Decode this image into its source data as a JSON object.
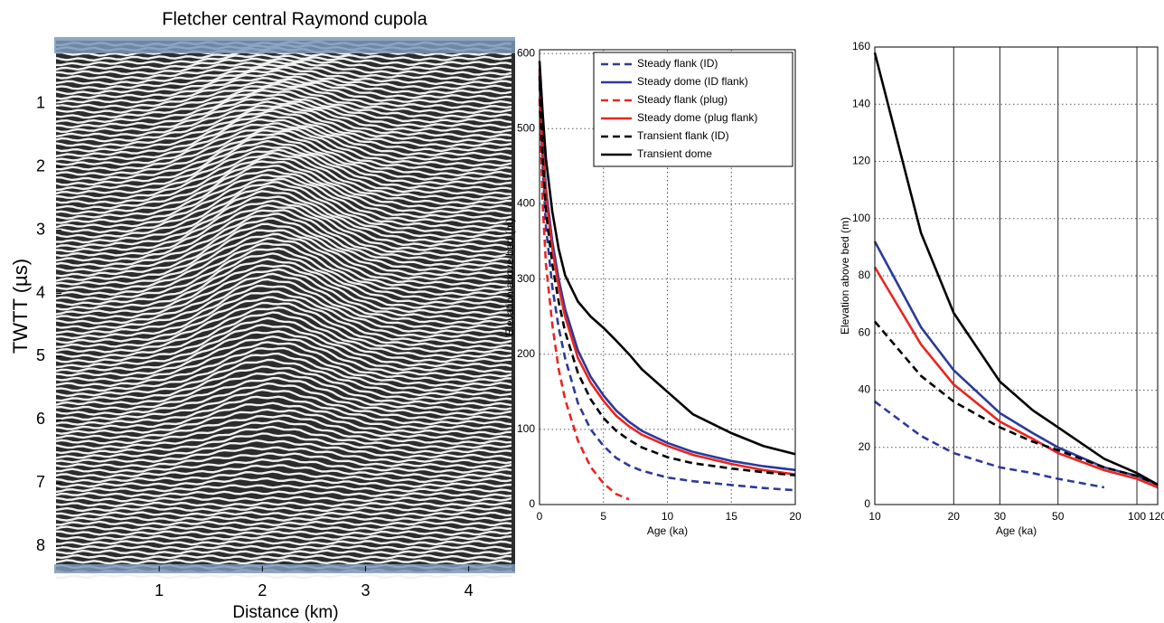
{
  "chart_data": [
    {
      "type": "image",
      "title": "Fletcher central Raymond cupola",
      "xlabel": "Distance (km)",
      "ylabel": "TWTT (µs)",
      "xlim": [
        0,
        4.45
      ],
      "xticks": [
        1,
        2,
        3,
        4
      ],
      "ylim": [
        0,
        8.4
      ],
      "yticks": [
        1,
        2,
        3,
        4,
        5,
        6,
        7,
        8
      ],
      "yinverted": true
    },
    {
      "type": "line",
      "xlabel": "Age (ka)",
      "ylabel": "Elevation above bed (m)",
      "x": [
        0,
        0.25,
        0.5,
        1,
        1.5,
        2,
        3,
        4,
        5,
        6,
        7,
        8,
        10,
        12,
        15,
        17.5,
        20
      ],
      "xlim": [
        0,
        20
      ],
      "xticks": [
        0,
        5,
        10,
        15,
        20
      ],
      "ylim": [
        0,
        605
      ],
      "yticks": [
        0,
        100,
        200,
        300,
        400,
        500,
        600
      ],
      "xgrid": "dotted",
      "ygrid": "dotted",
      "legend": "upper right",
      "series": [
        {
          "name": "Steady flank (ID)",
          "color": "#2b3a9a",
          "linestyle": "dashed",
          "values": [
            560,
            450,
            370,
            290,
            235,
            195,
            135,
            100,
            78,
            62,
            52,
            45,
            36,
            31,
            26,
            22,
            19
          ]
        },
        {
          "name": "Steady dome (ID flank)",
          "color": "#2b3a9a",
          "linestyle": "solid",
          "values": [
            580,
            480,
            420,
            350,
            300,
            260,
            205,
            170,
            145,
            125,
            110,
            98,
            82,
            70,
            58,
            51,
            46
          ]
        },
        {
          "name": "Steady flank (plug)",
          "color": "#e8251f",
          "linestyle": "dashed",
          "values": [
            540,
            400,
            320,
            240,
            180,
            140,
            85,
            50,
            28,
            14,
            7,
            null,
            null,
            null,
            null,
            null,
            null
          ]
        },
        {
          "name": "Steady dome (plug flank)",
          "color": "#e8251f",
          "linestyle": "solid",
          "values": [
            575,
            470,
            410,
            340,
            290,
            250,
            195,
            162,
            138,
            118,
            104,
            93,
            78,
            66,
            54,
            46,
            40
          ]
        },
        {
          "name": "Transient flank (ID)",
          "color": "#000000",
          "linestyle": "dashed",
          "values": [
            570,
            460,
            390,
            320,
            270,
            230,
            175,
            140,
            115,
            98,
            86,
            76,
            63,
            55,
            48,
            43,
            39
          ]
        },
        {
          "name": "Transient dome",
          "color": "#000000",
          "linestyle": "solid",
          "values": [
            590,
            520,
            460,
            390,
            340,
            305,
            270,
            250,
            235,
            218,
            200,
            180,
            150,
            120,
            95,
            78,
            67
          ]
        }
      ]
    },
    {
      "type": "line",
      "xlabel": "Age (ka)",
      "ylabel": "Elevation above bed (m)",
      "xscale": "log",
      "x": [
        10,
        15,
        20,
        30,
        40,
        50,
        75,
        100,
        120
      ],
      "xlim": [
        10,
        120
      ],
      "xticks": [
        10,
        20,
        30,
        50,
        100,
        120
      ],
      "ylim": [
        0,
        160
      ],
      "yticks": [
        0,
        20,
        40,
        60,
        80,
        100,
        120,
        140,
        160
      ],
      "xgrid": "solid",
      "ygrid": "dotted",
      "series": [
        {
          "color": "#2b3a9a",
          "linestyle": "dashed",
          "values": [
            36,
            24,
            18,
            13,
            11,
            9,
            6,
            null,
            null
          ]
        },
        {
          "color": "#2b3a9a",
          "linestyle": "solid",
          "values": [
            92,
            62,
            47,
            32,
            25,
            20,
            13,
            10,
            7
          ]
        },
        {
          "color": "#e8251f",
          "linestyle": "solid",
          "values": [
            83,
            56,
            42,
            29,
            23,
            18,
            12,
            9,
            6
          ]
        },
        {
          "color": "#000000",
          "linestyle": "dashed",
          "values": [
            64,
            45,
            36,
            27,
            22,
            19,
            13,
            10,
            7
          ]
        },
        {
          "color": "#000000",
          "linestyle": "solid",
          "values": [
            158,
            95,
            67,
            43,
            33,
            27,
            16,
            11,
            7
          ]
        }
      ]
    }
  ]
}
